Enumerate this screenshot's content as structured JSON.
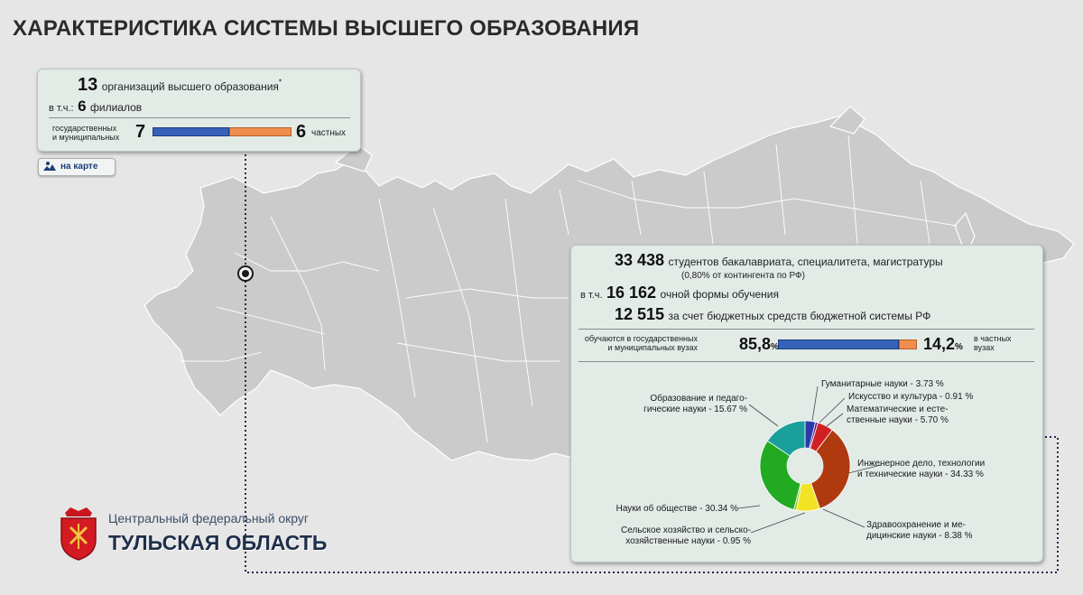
{
  "title": "ХАРАКТЕРИСТИКА СИСТЕМЫ ВЫСШЕГО ОБРАЗОВАНИЯ",
  "orgs": {
    "count": "13",
    "label": "организаций высшего образования",
    "footnote_mark": "*",
    "incl_prefix": "в т.ч.:",
    "branches_count": "6",
    "branches_label": "филиалов",
    "state_label_1": "государственных",
    "state_label_2": "и муниципальных",
    "state_count": "7",
    "private_count": "6",
    "private_label": "частных",
    "state_share": 0.538
  },
  "map_button": {
    "label": "на карте",
    "icon": "map-pin-icon"
  },
  "region": {
    "district": "Центральный федеральный округ",
    "name": "ТУЛЬСКАЯ ОБЛАСТЬ",
    "emblem_icon": "tula-emblem-icon"
  },
  "students": {
    "total": "33 438",
    "total_label": "студентов бакалавриата, специалитета, магистратуры",
    "share_note": "(0,80% от контингента по РФ)",
    "incl_prefix": "в т.ч.",
    "fulltime": "16 162",
    "fulltime_label": "очной формы обучения",
    "budget": "12 515",
    "budget_label": "за счет бюджетных средств бюджетной системы РФ",
    "state_label_1": "обучаются в государственных",
    "state_label_2": "и муниципальных вузах",
    "state_pct": "85,8",
    "private_pct": "14,2",
    "pct_sign": "%",
    "private_label_1": "в частных",
    "private_label_2": "вузах",
    "state_share": 0.858
  },
  "colors": {
    "blue": "#3562b8",
    "orange": "#ef8e4e",
    "title": "#2a2a2a"
  },
  "chart_data": {
    "type": "pie",
    "title": "",
    "categories": [
      "Гуманитарные науки",
      "Искусство и культура",
      "Математические и естественные науки",
      "Инженерное дело, технологии и технические науки",
      "Здравоохранение и медицинские науки",
      "Сельское хозяйство и сельскохозяйственные науки",
      "Науки об обществе",
      "Образование и педагогические науки"
    ],
    "values": [
      3.73,
      0.91,
      5.7,
      34.33,
      8.38,
      0.95,
      30.34,
      15.67
    ],
    "colors": [
      "#2a3aa8",
      "#6b1a8a",
      "#d02020",
      "#b03a10",
      "#f2e324",
      "#9bd21e",
      "#22aa22",
      "#1aa09a"
    ],
    "labels": [
      [
        "Гуманитарные науки - 3.73 %"
      ],
      [
        "Искусство и культура - 0.91 %"
      ],
      [
        "Математические и есте-",
        "ственные науки - 5.70 %"
      ],
      [
        "Инженерное дело, технологии",
        "и технические науки - 34.33 %"
      ],
      [
        "Здравоохранение и ме-",
        "дицинские науки - 8.38 %"
      ],
      [
        "Сельское хозяйство и сельско-",
        "хозяйственные науки - 0.95 %"
      ],
      [
        "Науки об обществе - 30.34 %"
      ],
      [
        "Образование и педаго-",
        "гические науки - 15.67 %"
      ]
    ]
  }
}
